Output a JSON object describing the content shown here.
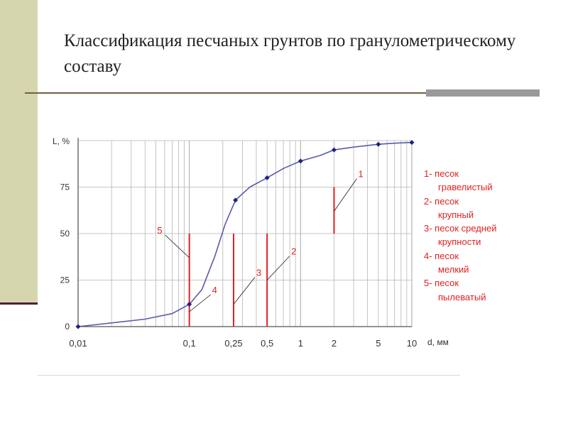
{
  "slide": {
    "title": "Классификация песчаных грунтов по гранулометрическому составу"
  },
  "chart_data": {
    "type": "line",
    "xscale": "log",
    "xlim": [
      0.01,
      10
    ],
    "ylim": [
      0,
      100
    ],
    "ylabel": "L, %",
    "xlabel": "d, мм",
    "yticks": [
      0,
      25,
      50,
      75
    ],
    "ytick_labels": [
      "0",
      "25",
      "50",
      "75"
    ],
    "xticks": [
      0.01,
      0.1,
      0.25,
      0.5,
      1,
      2,
      5,
      10
    ],
    "xtick_labels": [
      "0,01",
      "0,1",
      "0,25",
      "0,5",
      "1",
      "2",
      "5",
      "10"
    ],
    "grid": true,
    "curve": {
      "x": [
        0.01,
        0.02,
        0.04,
        0.07,
        0.1,
        0.13,
        0.17,
        0.21,
        0.26,
        0.35,
        0.5,
        0.7,
        1,
        1.5,
        2,
        3,
        5,
        7,
        10
      ],
      "y": [
        0,
        2,
        4,
        7,
        12,
        20,
        38,
        55,
        68,
        75,
        80,
        85,
        89,
        92,
        95,
        96.5,
        98,
        98.6,
        99
      ]
    },
    "markers": {
      "x": [
        0.01,
        0.1,
        0.26,
        0.5,
        1,
        2,
        5,
        10
      ],
      "y": [
        0,
        12,
        68,
        80,
        89,
        95,
        98,
        99
      ]
    },
    "boundaries": [
      {
        "label": "1",
        "x": 2,
        "y0": 50,
        "y1": 75
      },
      {
        "label": "2",
        "x": 0.5,
        "y0": 0,
        "y1": 50
      },
      {
        "label": "3",
        "x": 0.25,
        "y0": 0,
        "y1": 50
      },
      {
        "label": "4",
        "x": 0.1,
        "y0": 0,
        "y1": 25
      },
      {
        "label": "5",
        "x": 0.1,
        "y0": 25,
        "y1": 50
      }
    ],
    "colors": {
      "curve": "#5a5aaa",
      "marker": "#1a237e",
      "boundary": "#e02020",
      "grid": "#b5b5b5",
      "axis": "#555555"
    }
  },
  "legend": {
    "items": [
      {
        "line1": "1- песок",
        "line2": "гравелистый"
      },
      {
        "line1": "2- песок",
        "line2": "крупный"
      },
      {
        "line1": "3- песок средней",
        "line2": "крупности"
      },
      {
        "line1": "4- песок",
        "line2": "мелкий"
      },
      {
        "line1": "5- песок",
        "line2": "пылеватый"
      }
    ]
  }
}
